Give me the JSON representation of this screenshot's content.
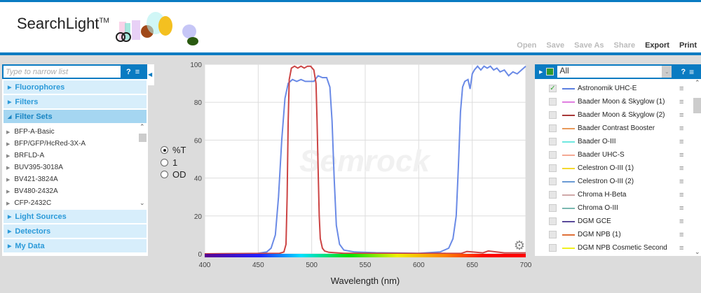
{
  "header": {
    "logo": "SearchLight",
    "tm": "TM",
    "toolbar": [
      {
        "label": "Open",
        "enabled": false
      },
      {
        "label": "Save",
        "enabled": false
      },
      {
        "label": "Save As",
        "enabled": false
      },
      {
        "label": "Share",
        "enabled": false
      },
      {
        "label": "Export",
        "enabled": true
      },
      {
        "label": "Print",
        "enabled": true
      }
    ]
  },
  "left": {
    "search_placeholder": "Type to narrow list",
    "help": "?",
    "sections_top": [
      "Fluorophores",
      "Filters"
    ],
    "active_section": "Filter Sets",
    "items": [
      "BFP-A-Basic",
      "BFP/GFP/HcRed-3X-A",
      "BRFLD-A",
      "BUV395-3018A",
      "BV421-3824A",
      "BV480-2432A",
      "CFP-2432C"
    ],
    "sections_bottom": [
      "Light Sources",
      "Detectors",
      "My Data"
    ]
  },
  "units": {
    "options": [
      "%T",
      "1",
      "OD"
    ],
    "selected": "%T"
  },
  "right": {
    "filter_value": "All",
    "help": "?",
    "items": [
      {
        "name": "Astronomik UHC-E",
        "color": "#5b7fe0",
        "checked": true
      },
      {
        "name": "Baader Moon & Skyglow (1)",
        "color": "#e07ee0",
        "checked": false
      },
      {
        "name": "Baader Moon & Skyglow (2)",
        "color": "#a83838",
        "checked": false
      },
      {
        "name": "Baader Contrast Booster",
        "color": "#e89a5a",
        "checked": false
      },
      {
        "name": "Baader O-III",
        "color": "#6ee8e0",
        "checked": false
      },
      {
        "name": "Baader UHC-S",
        "color": "#f4a894",
        "checked": false
      },
      {
        "name": "Celestron O-III (1)",
        "color": "#f4d830",
        "checked": false
      },
      {
        "name": "Celestron O-III (2)",
        "color": "#6a9ad4",
        "checked": false
      },
      {
        "name": "Chroma H-Beta",
        "color": "#d0a8a8",
        "checked": false
      },
      {
        "name": "Chroma O-III",
        "color": "#7ab8b0",
        "checked": false
      },
      {
        "name": "DGM GCE",
        "color": "#5a4a9a",
        "checked": false
      },
      {
        "name": "DGM NPB (1)",
        "color": "#e07038",
        "checked": false
      },
      {
        "name": "DGM NPB Cosmetic Second",
        "color": "#f0f020",
        "checked": false
      }
    ]
  },
  "chart_data": {
    "type": "line",
    "xlabel": "Wavelength (nm)",
    "ylabel": "",
    "xlim": [
      400,
      700
    ],
    "ylim": [
      0,
      100
    ],
    "xticks": [
      400,
      450,
      500,
      550,
      600,
      650,
      700
    ],
    "yticks": [
      0,
      20,
      40,
      60,
      80,
      100
    ],
    "grid": true,
    "watermark": "Semrock",
    "series": [
      {
        "color": "#6a8ae6",
        "x": [
          400,
          450,
          458,
          462,
          466,
          469,
          472,
          475,
          478,
          482,
          486,
          490,
          494,
          498,
          502,
          506,
          510,
          514,
          517,
          519,
          521,
          523,
          526,
          530,
          540,
          560,
          600,
          620,
          628,
          632,
          635,
          637,
          639,
          641,
          643,
          646,
          648,
          650,
          652,
          655,
          658,
          661,
          664,
          667,
          670,
          673,
          676,
          680,
          684,
          688,
          692,
          696,
          700
        ],
        "y": [
          0,
          0.3,
          1,
          3,
          10,
          30,
          60,
          82,
          90,
          92,
          91,
          92,
          91,
          91,
          91,
          94,
          93,
          93,
          88,
          70,
          40,
          15,
          5,
          2,
          1,
          0.6,
          0.3,
          1,
          3,
          8,
          20,
          45,
          75,
          88,
          91,
          92,
          87,
          95,
          97,
          99,
          97,
          99,
          98,
          99,
          97,
          98,
          96,
          97,
          94,
          96,
          95,
          97,
          99
        ]
      },
      {
        "color": "#cc4444",
        "x": [
          400,
          470,
          474,
          476,
          477,
          478,
          479,
          481,
          484,
          487,
          490,
          493,
          496,
          499,
          502,
          504,
          505,
          506,
          507,
          508,
          510,
          512,
          516,
          530,
          600,
          640,
          645,
          650,
          660,
          665,
          680,
          700
        ],
        "y": [
          0,
          0.3,
          1,
          5,
          30,
          70,
          92,
          98,
          99,
          98,
          99,
          98,
          99,
          99,
          97,
          90,
          70,
          45,
          20,
          8,
          3,
          1.5,
          0.8,
          0.3,
          0.2,
          0.3,
          1.2,
          1,
          0.5,
          1.5,
          0.5,
          0.5
        ]
      }
    ]
  }
}
